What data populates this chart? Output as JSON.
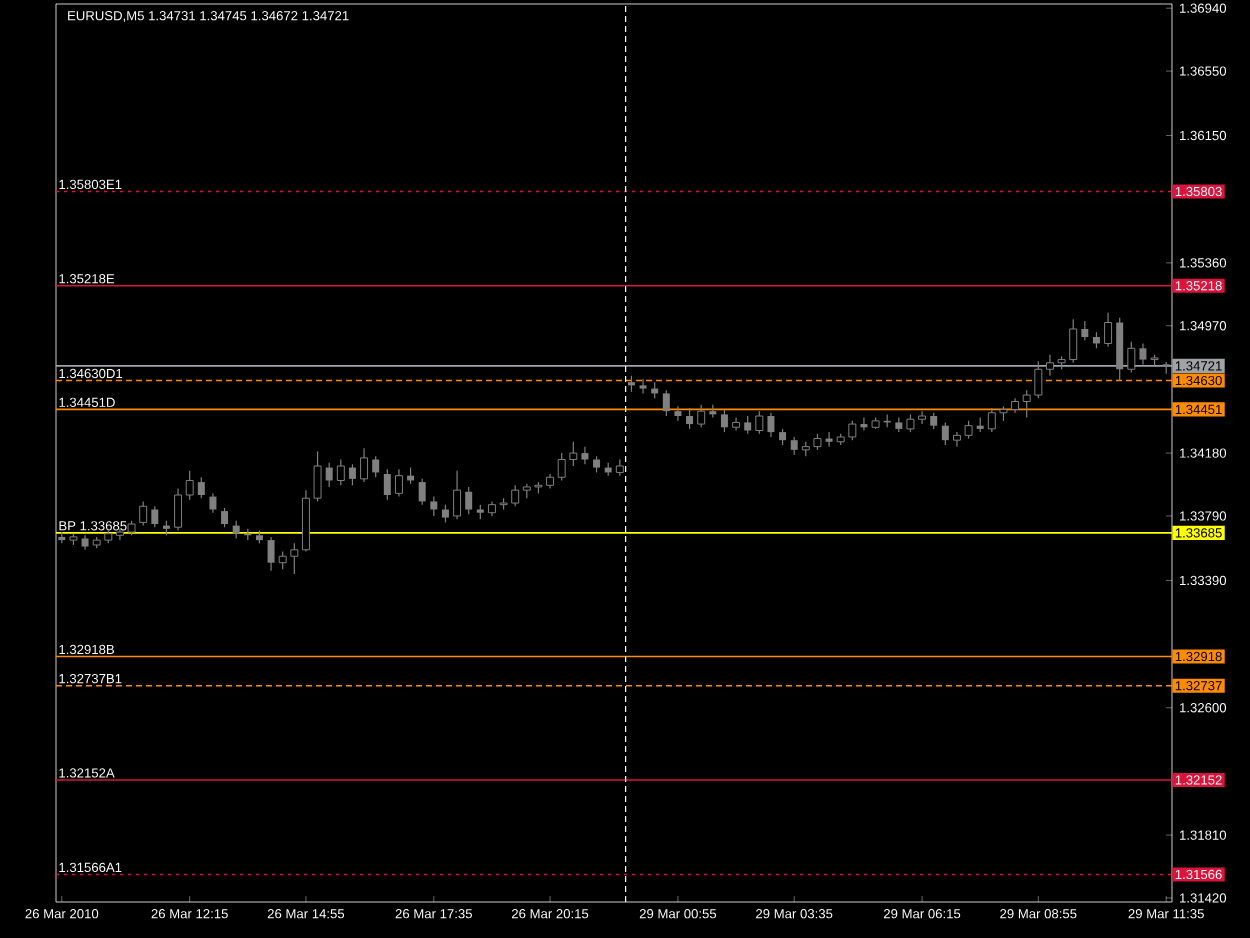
{
  "chart_data": {
    "type": "candlestick",
    "title": "EURUSD,M5  1.34731 1.34745 1.34672 1.34721",
    "color": "#808080",
    "categories": [
      "26 Mar 2010",
      null,
      null,
      null,
      null,
      null,
      null,
      null,
      null,
      null,
      null,
      "26 Mar 12:15",
      null,
      null,
      null,
      null,
      null,
      null,
      null,
      null,
      null,
      "26 Mar 14:55",
      null,
      null,
      null,
      null,
      null,
      null,
      null,
      null,
      null,
      null,
      "26 Mar 17:35",
      null,
      null,
      null,
      null,
      null,
      null,
      null,
      null,
      null,
      "26 Mar 20:15",
      null,
      null,
      null,
      null,
      null,
      null,
      null,
      null,
      null,
      null,
      "29 Mar 00:55",
      null,
      null,
      null,
      null,
      null,
      null,
      null,
      null,
      null,
      "29 Mar 03:35",
      null,
      null,
      null,
      null,
      null,
      null,
      null,
      null,
      null,
      null,
      "29 Mar 06:15",
      null,
      null,
      null,
      null,
      null,
      null,
      null,
      null,
      null,
      "29 Mar 08:55",
      null,
      null,
      null,
      null,
      null,
      null,
      null,
      null,
      null,
      null,
      "29 Mar 11:35"
    ],
    "ohlc": [
      [
        1.3366,
        1.3369,
        1.3362,
        1.3364
      ],
      [
        1.3364,
        1.3368,
        1.3361,
        1.3366
      ],
      [
        1.3365,
        1.3367,
        1.3358,
        1.336
      ],
      [
        1.3361,
        1.3366,
        1.3359,
        1.3364
      ],
      [
        1.3364,
        1.337,
        1.3362,
        1.3368
      ],
      [
        1.3367,
        1.3371,
        1.3364,
        1.3369
      ],
      [
        1.3369,
        1.3376,
        1.3367,
        1.3374
      ],
      [
        1.3375,
        1.3388,
        1.3373,
        1.3385
      ],
      [
        1.3383,
        1.3385,
        1.3372,
        1.3374
      ],
      [
        1.3373,
        1.3376,
        1.3367,
        1.3371
      ],
      [
        1.3372,
        1.3396,
        1.337,
        1.3392
      ],
      [
        1.3392,
        1.3407,
        1.3389,
        1.3401
      ],
      [
        1.34,
        1.3403,
        1.339,
        1.3392
      ],
      [
        1.3391,
        1.3393,
        1.3381,
        1.3383
      ],
      [
        1.3382,
        1.3384,
        1.3372,
        1.3374
      ],
      [
        1.3373,
        1.3376,
        1.3365,
        1.3368
      ],
      [
        1.3368,
        1.3371,
        1.3364,
        1.3367
      ],
      [
        1.3367,
        1.337,
        1.3362,
        1.3364
      ],
      [
        1.3364,
        1.3366,
        1.3345,
        1.335
      ],
      [
        1.335,
        1.3357,
        1.3346,
        1.3354
      ],
      [
        1.3354,
        1.3362,
        1.3343,
        1.3358
      ],
      [
        1.3358,
        1.3395,
        1.3357,
        1.339
      ],
      [
        1.339,
        1.3419,
        1.3388,
        1.341
      ],
      [
        1.3409,
        1.3412,
        1.3397,
        1.3401
      ],
      [
        1.3401,
        1.3414,
        1.3398,
        1.341
      ],
      [
        1.3409,
        1.3411,
        1.3398,
        1.3402
      ],
      [
        1.3402,
        1.3421,
        1.34,
        1.3415
      ],
      [
        1.3414,
        1.3416,
        1.3403,
        1.3406
      ],
      [
        1.3405,
        1.3408,
        1.3389,
        1.3392
      ],
      [
        1.3393,
        1.3408,
        1.3391,
        1.3404
      ],
      [
        1.3404,
        1.3409,
        1.3399,
        1.3401
      ],
      [
        1.34,
        1.3402,
        1.3386,
        1.3388
      ],
      [
        1.3388,
        1.3391,
        1.3379,
        1.3383
      ],
      [
        1.3383,
        1.3386,
        1.3375,
        1.3378
      ],
      [
        1.3379,
        1.3407,
        1.3377,
        1.3395
      ],
      [
        1.3394,
        1.3397,
        1.338,
        1.3383
      ],
      [
        1.3383,
        1.3386,
        1.3377,
        1.3381
      ],
      [
        1.3381,
        1.3388,
        1.3379,
        1.3386
      ],
      [
        1.3386,
        1.339,
        1.3383,
        1.3387
      ],
      [
        1.3387,
        1.3398,
        1.3385,
        1.3395
      ],
      [
        1.3395,
        1.3399,
        1.339,
        1.3397
      ],
      [
        1.3397,
        1.34,
        1.3393,
        1.3398
      ],
      [
        1.3398,
        1.3405,
        1.3396,
        1.3403
      ],
      [
        1.3403,
        1.3418,
        1.3401,
        1.3414
      ],
      [
        1.3414,
        1.3425,
        1.341,
        1.3418
      ],
      [
        1.3418,
        1.3422,
        1.3411,
        1.3414
      ],
      [
        1.3414,
        1.3416,
        1.3406,
        1.3409
      ],
      [
        1.3409,
        1.3412,
        1.3404,
        1.3406
      ],
      [
        1.3406,
        1.3414,
        1.3404,
        1.341
      ],
      [
        1.3462,
        1.3466,
        1.3456,
        1.346
      ],
      [
        1.346,
        1.3464,
        1.3455,
        1.3458
      ],
      [
        1.3458,
        1.3462,
        1.3452,
        1.3455
      ],
      [
        1.3455,
        1.3457,
        1.3441,
        1.3444
      ],
      [
        1.3444,
        1.3447,
        1.3438,
        1.3441
      ],
      [
        1.3441,
        1.3446,
        1.3433,
        1.3436
      ],
      [
        1.3436,
        1.3448,
        1.3434,
        1.3444
      ],
      [
        1.3444,
        1.3448,
        1.344,
        1.3442
      ],
      [
        1.3442,
        1.3445,
        1.3431,
        1.3434
      ],
      [
        1.3434,
        1.344,
        1.3432,
        1.3437
      ],
      [
        1.3437,
        1.3441,
        1.343,
        1.3432
      ],
      [
        1.3432,
        1.3444,
        1.343,
        1.3441
      ],
      [
        1.3441,
        1.3443,
        1.3428,
        1.3431
      ],
      [
        1.3431,
        1.3433,
        1.3423,
        1.3426
      ],
      [
        1.3426,
        1.3428,
        1.3417,
        1.342
      ],
      [
        1.342,
        1.3425,
        1.3416,
        1.3422
      ],
      [
        1.3422,
        1.343,
        1.342,
        1.3427
      ],
      [
        1.3427,
        1.3431,
        1.3422,
        1.3425
      ],
      [
        1.3425,
        1.343,
        1.3423,
        1.3428
      ],
      [
        1.3428,
        1.3438,
        1.3426,
        1.3436
      ],
      [
        1.3436,
        1.344,
        1.3432,
        1.3434
      ],
      [
        1.3434,
        1.344,
        1.3433,
        1.3438
      ],
      [
        1.3438,
        1.3442,
        1.3434,
        1.3437
      ],
      [
        1.3437,
        1.344,
        1.3431,
        1.3433
      ],
      [
        1.3433,
        1.3442,
        1.3431,
        1.3439
      ],
      [
        1.3439,
        1.3444,
        1.3436,
        1.3441
      ],
      [
        1.3441,
        1.3443,
        1.3433,
        1.3435
      ],
      [
        1.3435,
        1.3437,
        1.3423,
        1.3426
      ],
      [
        1.3426,
        1.3431,
        1.3422,
        1.3429
      ],
      [
        1.3429,
        1.3438,
        1.3427,
        1.3435
      ],
      [
        1.3435,
        1.344,
        1.3431,
        1.3433
      ],
      [
        1.3433,
        1.3446,
        1.3431,
        1.3443
      ],
      [
        1.3443,
        1.3447,
        1.3438,
        1.3445
      ],
      [
        1.3445,
        1.3452,
        1.3443,
        1.345
      ],
      [
        1.345,
        1.3457,
        1.344,
        1.3454
      ],
      [
        1.3454,
        1.3475,
        1.3452,
        1.347
      ],
      [
        1.347,
        1.3479,
        1.3466,
        1.3474
      ],
      [
        1.3474,
        1.3478,
        1.347,
        1.3476
      ],
      [
        1.3476,
        1.3501,
        1.3474,
        1.3495
      ],
      [
        1.3495,
        1.35,
        1.3488,
        1.349
      ],
      [
        1.349,
        1.3493,
        1.3483,
        1.3486
      ],
      [
        1.3486,
        1.3505,
        1.3484,
        1.3499
      ],
      [
        1.3499,
        1.3502,
        1.3463,
        1.347
      ],
      [
        1.347,
        1.3487,
        1.3468,
        1.3483
      ],
      [
        1.3483,
        1.3486,
        1.3473,
        1.3476
      ],
      [
        1.3476,
        1.3479,
        1.3472,
        1.3477
      ],
      [
        1.34731,
        1.34745,
        1.34672,
        1.34721
      ]
    ],
    "ylim": [
      1.31395,
      1.36966
    ],
    "yticks": [
      {
        "value": 1.3694,
        "label": "1.36940"
      },
      {
        "value": 1.3655,
        "label": "1.36550"
      },
      {
        "value": 1.3615,
        "label": "1.36150"
      },
      {
        "value": 1.35803,
        "label": "1.35803"
      },
      {
        "value": 1.3536,
        "label": "1.35360"
      },
      {
        "value": 1.35218,
        "label": "1.35218"
      },
      {
        "value": 1.3497,
        "label": "1.34970"
      },
      {
        "value": 1.34721,
        "label": "1.34721"
      },
      {
        "value": 1.3463,
        "label": "1.34630"
      },
      {
        "value": 1.34451,
        "label": "1.34451"
      },
      {
        "value": 1.3418,
        "label": "1.34180"
      },
      {
        "value": 1.3379,
        "label": "1.33790"
      },
      {
        "value": 1.33685,
        "label": "1.33685"
      },
      {
        "value": 1.3339,
        "label": "1.33390"
      },
      {
        "value": 1.32918,
        "label": "1.32918"
      },
      {
        "value": 1.32737,
        "label": "1.32737"
      },
      {
        "value": 1.326,
        "label": "1.32600"
      },
      {
        "value": 1.32152,
        "label": "1.32152"
      },
      {
        "value": 1.3181,
        "label": "1.31810"
      },
      {
        "value": 1.31566,
        "label": "1.31566"
      },
      {
        "value": 1.3142,
        "label": "1.31420"
      }
    ],
    "ref_lines": [
      {
        "axis": "y",
        "value": 1.35803,
        "label": "1.35803E1",
        "color": "#dc143c",
        "line_style": "dotted"
      },
      {
        "axis": "y",
        "value": 1.35218,
        "label": "1.35218E",
        "color": "#dc143c",
        "line_style": "solid"
      },
      {
        "axis": "y",
        "value": 1.34721,
        "color": "#a0a4a8",
        "line_style": "solid"
      },
      {
        "axis": "y",
        "value": 1.3463,
        "label": "1.34630D1",
        "color": "#ff8c00",
        "line_style": "dashed"
      },
      {
        "axis": "y",
        "value": 1.34451,
        "label": "1.34451D",
        "color": "#ff8c00",
        "line_style": "solid"
      },
      {
        "axis": "y",
        "value": 1.33685,
        "label": "BP 1.33685",
        "color": "#ffff00",
        "line_style": "solid"
      },
      {
        "axis": "y",
        "value": 1.32918,
        "label": "1.32918B",
        "color": "#ff8c00",
        "line_style": "solid"
      },
      {
        "axis": "y",
        "value": 1.32737,
        "label": "1.32737B1",
        "color": "#ff8c00",
        "line_style": "dashed"
      },
      {
        "axis": "y",
        "value": 1.32152,
        "label": "1.32152A",
        "color": "#dc143c",
        "line_style": "solid"
      },
      {
        "axis": "y",
        "value": 1.31566,
        "label": "1.31566A1",
        "color": "#dc143c",
        "line_style": "dotted"
      }
    ]
  }
}
